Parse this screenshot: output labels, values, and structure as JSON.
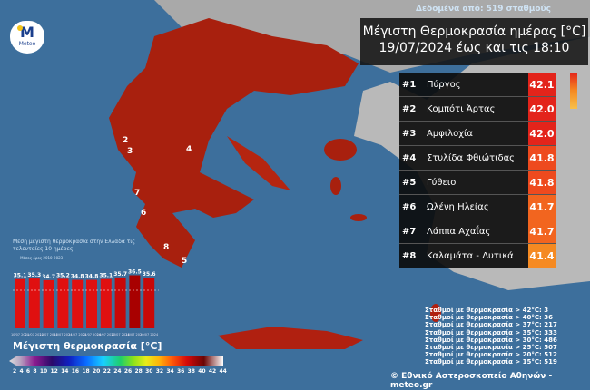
{
  "header": {
    "source": "Δεδομένα από: 519 σταθμούς",
    "title_line1": "Μέγιστη Θερμοκρασία ημέρας [°C]",
    "title_line2": "19/07/2024 έως και τις 18:10"
  },
  "logo": {
    "text": "Meteo",
    "letter": "M"
  },
  "ranking": [
    {
      "rank": "#1",
      "name": "Πύργος",
      "value": "42.1",
      "color": "#e3241b"
    },
    {
      "rank": "#2",
      "name": "Κομπότι Άρτας",
      "value": "42.0",
      "color": "#e3241b"
    },
    {
      "rank": "#3",
      "name": "Αμφιλοχία",
      "value": "42.0",
      "color": "#e3241b"
    },
    {
      "rank": "#4",
      "name": "Στυλίδα Φθιώτιδας",
      "value": "41.8",
      "color": "#ee4a1e"
    },
    {
      "rank": "#5",
      "name": "Γύθειο",
      "value": "41.8",
      "color": "#ee4a1e"
    },
    {
      "rank": "#6",
      "name": "Ωλένη Ηλείας",
      "value": "41.7",
      "color": "#f2651f"
    },
    {
      "rank": "#7",
      "name": "Λάππα Αχαΐας",
      "value": "41.7",
      "color": "#f2651f"
    },
    {
      "rank": "#8",
      "name": "Καλαμάτα - Δυτικά",
      "value": "41.4",
      "color": "#f58a22"
    }
  ],
  "map_markers": [
    "2",
    "3",
    "4",
    "7",
    "6",
    "8",
    "5"
  ],
  "stats": [
    "Σταθμοί με θερμοκρασία > 42°C: 3",
    "Σταθμοί με θερμοκρασία > 40°C: 36",
    "Σταθμοί με θερμοκρασία > 37°C: 217",
    "Σταθμοί με θερμοκρασία > 35°C: 333",
    "Σταθμοί με θερμοκρασία > 30°C: 486",
    "Σταθμοί με θερμοκρασία > 25°C: 507",
    "Σταθμοί με θερμοκρασία > 20°C: 512",
    "Σταθμοί με θερμοκρασία > 15°C: 519"
  ],
  "credit": "© Εθνικό Αστεροσκοπείο Αθηνών - meteo.gr",
  "chart_data": {
    "type": "bar",
    "title": "Μέση μέγιστη θερμοκρασία στην Ελλάδα τις τελευταίες 10 ημέρες",
    "legend": "Μέσος όρος 2010-2023",
    "categories": [
      "10/07 2024",
      "11/07 2024",
      "12/07 2024",
      "13/07 2024",
      "14/07 2024",
      "15/07 2024",
      "16/07 2024",
      "17/07 2024",
      "18/07 2024",
      "19/07 2024"
    ],
    "values": [
      35.1,
      35.3,
      34.7,
      35.2,
      34.8,
      34.8,
      35.1,
      35.7,
      36.5,
      35.6
    ],
    "ylim": [
      17,
      37
    ],
    "color": "#e01010"
  },
  "colorbar": {
    "title": "Μέγιστη θερμοκρασία [°C]",
    "ticks": [
      "2",
      "4",
      "6",
      "8",
      "10",
      "12",
      "14",
      "16",
      "18",
      "20",
      "22",
      "24",
      "26",
      "28",
      "30",
      "32",
      "34",
      "36",
      "38",
      "40",
      "42",
      "44"
    ]
  }
}
